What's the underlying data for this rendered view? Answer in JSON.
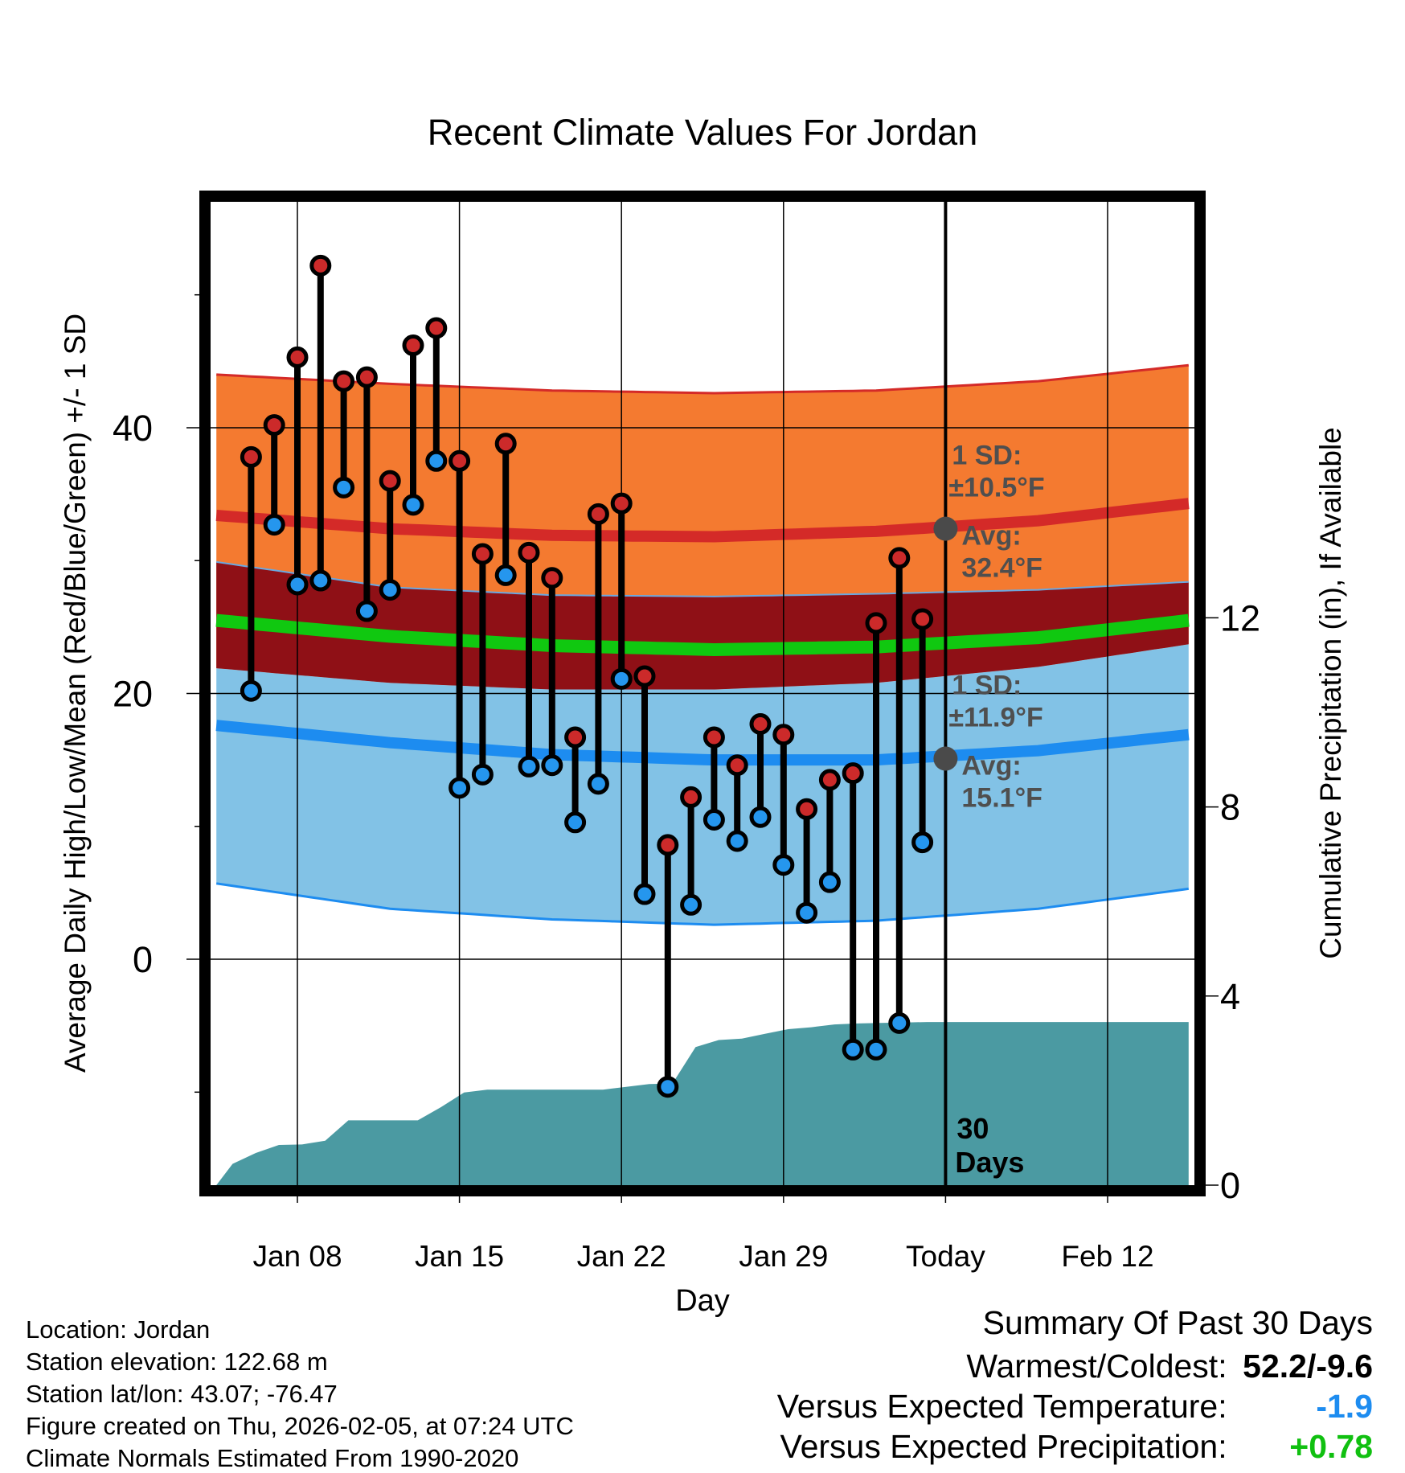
{
  "chart_data": {
    "type": "line",
    "title": "Recent Climate Values For Jordan",
    "xlabel": "Day",
    "ylabel": "Average Daily High/Low/Mean (Red/Blue/Green) +/- 1 SD",
    "y2label": "Cumulative Precipitation (in), If Available",
    "xlim": [
      4.25,
      46.75
    ],
    "ylim": [
      -17,
      57
    ],
    "y2lim": [
      0,
      20.8
    ],
    "x_ticks": [
      {
        "x": 8,
        "label": "Jan 08"
      },
      {
        "x": 15,
        "label": "Jan 15"
      },
      {
        "x": 22,
        "label": "Jan 22"
      },
      {
        "x": 29,
        "label": "Jan 29"
      },
      {
        "x": 36,
        "label": "Today"
      },
      {
        "x": 43,
        "label": "Feb 12"
      }
    ],
    "y_ticks": [
      0,
      20,
      40
    ],
    "y_minor_ticks": [
      -10,
      10,
      30,
      50
    ],
    "y2_ticks": [
      0,
      4,
      8,
      12
    ],
    "days": [
      6,
      7,
      8,
      9,
      10,
      11,
      12,
      13,
      14,
      15,
      16,
      17,
      18,
      19,
      20,
      21,
      22,
      23,
      24,
      25,
      26,
      27,
      28,
      29,
      30,
      31,
      32,
      33,
      34,
      35
    ],
    "highs": [
      37.8,
      40.2,
      45.3,
      52.2,
      43.5,
      43.8,
      36.0,
      46.2,
      47.5,
      37.5,
      30.5,
      38.8,
      30.6,
      28.7,
      16.7,
      33.5,
      34.3,
      21.3,
      8.6,
      12.2,
      16.7,
      14.6,
      17.7,
      16.9,
      11.3,
      13.5,
      14.0,
      25.3,
      30.2,
      25.6
    ],
    "lows": [
      20.2,
      32.7,
      28.2,
      28.5,
      35.5,
      26.2,
      27.8,
      34.2,
      37.5,
      12.9,
      13.9,
      28.9,
      14.5,
      14.6,
      10.3,
      13.2,
      21.1,
      4.9,
      -9.6,
      4.1,
      10.5,
      8.9,
      10.7,
      7.1,
      3.5,
      5.8,
      -6.8,
      -6.8,
      -4.8,
      8.8
    ],
    "normals": {
      "x": [
        4.5,
        12,
        19,
        26,
        33,
        40,
        46.5
      ],
      "high_mean": [
        33.4,
        32.4,
        31.9,
        31.8,
        32.2,
        33.0,
        34.3
      ],
      "high_upper": [
        44.0,
        43.3,
        42.8,
        42.6,
        42.8,
        43.5,
        44.7
      ],
      "high_lower": [
        29.9,
        28.0,
        27.4,
        27.3,
        27.5,
        27.8,
        28.4
      ],
      "mean": [
        25.5,
        24.3,
        23.6,
        23.3,
        23.5,
        24.2,
        25.5
      ],
      "low_mean": [
        17.6,
        16.3,
        15.4,
        15.0,
        15.0,
        15.7,
        16.9
      ],
      "low_upper": [
        21.9,
        20.8,
        20.3,
        20.3,
        20.8,
        22.0,
        23.7
      ],
      "low_lower": [
        5.7,
        3.8,
        3.0,
        2.6,
        2.9,
        3.8,
        5.3
      ]
    },
    "precip": {
      "x": [
        4.5,
        5.2,
        6.2,
        7.2,
        8.2,
        9.2,
        10.2,
        11.2,
        12.2,
        13.2,
        14.2,
        15.2,
        16.2,
        17.2,
        18.2,
        19.2,
        20.2,
        21.2,
        22.2,
        23.2,
        24.2,
        25.2,
        26.2,
        27.2,
        28.2,
        29.2,
        30.2,
        31.2,
        32.2,
        33.2,
        34.2,
        35.2,
        36,
        46.5
      ],
      "values": [
        0.0,
        0.45,
        0.68,
        0.85,
        0.86,
        0.94,
        1.37,
        1.37,
        1.37,
        1.37,
        1.65,
        1.96,
        2.02,
        2.02,
        2.02,
        2.02,
        2.02,
        2.02,
        2.08,
        2.14,
        2.15,
        2.92,
        3.07,
        3.1,
        3.2,
        3.3,
        3.34,
        3.4,
        3.42,
        3.43,
        3.44,
        3.45,
        3.45,
        3.45
      ]
    },
    "today_x": 36,
    "today_label": "30 Days",
    "annotations": [
      {
        "id": "high",
        "sd_title": "1 SD:",
        "sd_value": "±10.5°F",
        "avg_title": "Avg:",
        "avg_value": "32.4°F",
        "avg": 32.4
      },
      {
        "id": "low",
        "sd_title": "1 SD:",
        "sd_value": "±11.9°F",
        "avg_title": "Avg:",
        "avg_value": "15.1°F",
        "avg": 15.1
      }
    ]
  },
  "colors": {
    "orange_band": "#f47a30",
    "darkred_band": "#8f1016",
    "blue_band": "#82c2e6",
    "red_line": "#d42a28",
    "green_line": "#10c810",
    "blue_line": "#1d8cf0",
    "precip_fill": "#4b9aa2",
    "high_dot": "#cc2a2a",
    "low_dot": "#2596ee",
    "annotation_text": "#4f4f4f",
    "temp_delta": "#1d8cf0",
    "precip_delta": "#10c010"
  },
  "info": {
    "location": "Location: Jordan",
    "elevation": "Station elevation: 122.68 m",
    "latlon": "Station lat/lon: 43.07; -76.47",
    "created": "Figure created on Thu, 2026-02-05, at 07:24 UTC",
    "normals": "Climate Normals Estimated From 1990-2020"
  },
  "summary": {
    "title": "Summary Of Past 30 Days",
    "extremes_label": "Warmest/Coldest:",
    "extremes_value": "52.2/-9.6",
    "temp_label": "Versus Expected Temperature:",
    "temp_value": "-1.9",
    "precip_label": "Versus Expected Precipitation:",
    "precip_value": "+0.78"
  }
}
